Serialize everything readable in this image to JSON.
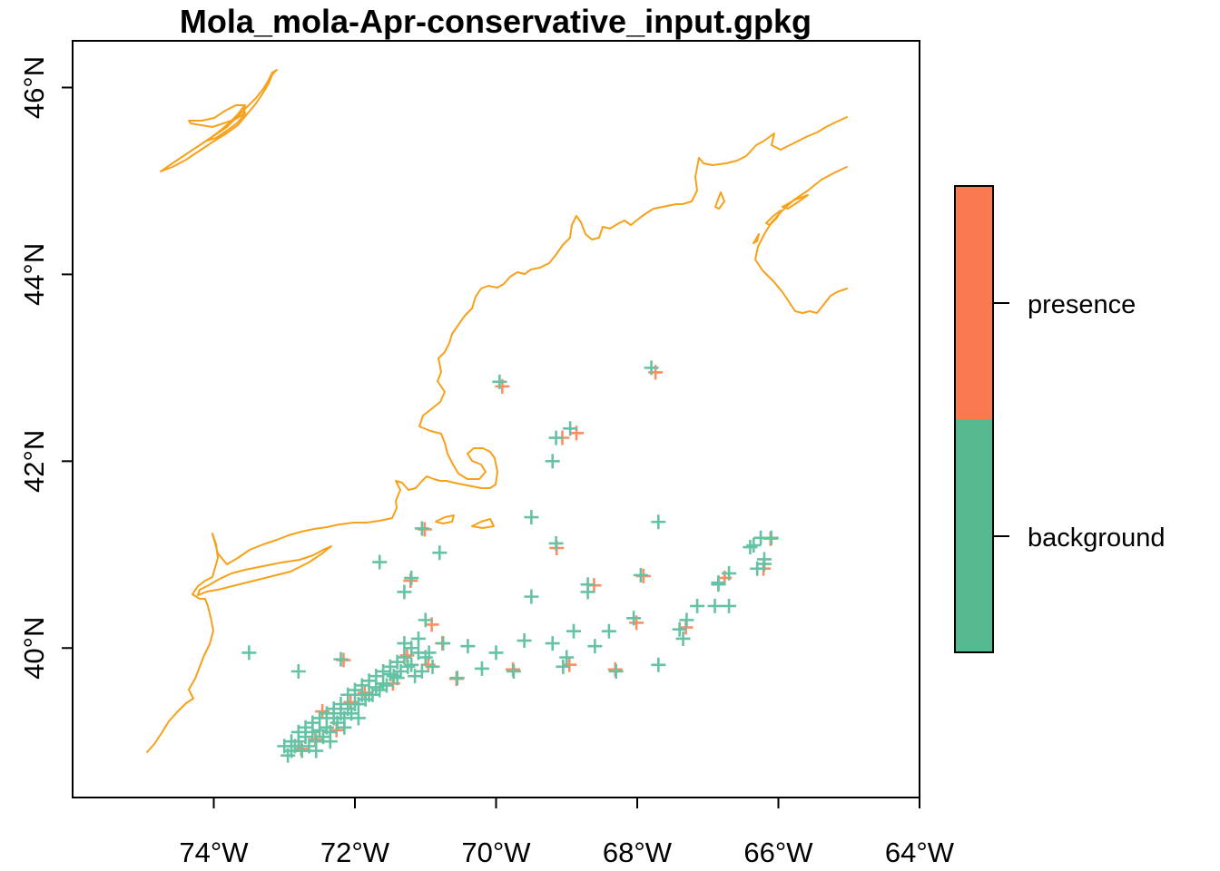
{
  "chart_data": {
    "type": "scatter",
    "title": "Mola_mola-Apr-conservative_input.gpkg",
    "xlabel": "",
    "ylabel": "",
    "xlim": [
      -76.0,
      -64.0
    ],
    "ylim": [
      38.4,
      46.5
    ],
    "x_ticks": [
      -74,
      -72,
      -70,
      -68,
      -66,
      -64
    ],
    "x_tick_labels": [
      "74°W",
      "72°W",
      "70°W",
      "68°W",
      "66°W",
      "64°W"
    ],
    "y_ticks": [
      40,
      42,
      44,
      46
    ],
    "y_tick_labels": [
      "40°N",
      "42°N",
      "44°N",
      "46°N"
    ],
    "colors": {
      "presence": "#FC8D62",
      "background": "#66C2A5",
      "coastline": "#F7A11A",
      "legend_background": "#56B990",
      "legend_presence": "#FA7A4F"
    },
    "legend": {
      "placement": "right",
      "labels": [
        "presence",
        "background"
      ]
    },
    "series": [
      {
        "name": "background",
        "points": [
          [
            -73.5,
            39.95
          ],
          [
            -72.8,
            39.75
          ],
          [
            -72.2,
            39.88
          ],
          [
            -71.0,
            40.3
          ],
          [
            -70.75,
            40.05
          ],
          [
            -70.4,
            40.02
          ],
          [
            -69.6,
            40.08
          ],
          [
            -69.2,
            40.05
          ],
          [
            -69.0,
            39.9
          ],
          [
            -68.9,
            40.18
          ],
          [
            -68.6,
            40.02
          ],
          [
            -68.4,
            40.18
          ],
          [
            -68.3,
            39.75
          ],
          [
            -67.7,
            39.82
          ],
          [
            -67.4,
            40.2
          ],
          [
            -67.15,
            40.45
          ],
          [
            -66.9,
            40.45
          ],
          [
            -66.7,
            40.45
          ],
          [
            -66.85,
            40.7
          ],
          [
            -66.7,
            40.8
          ],
          [
            -66.4,
            41.08
          ],
          [
            -66.25,
            41.18
          ],
          [
            -66.1,
            41.18
          ],
          [
            -66.2,
            40.9
          ],
          [
            -71.65,
            40.92
          ],
          [
            -71.2,
            40.75
          ],
          [
            -71.3,
            40.6
          ],
          [
            -71.05,
            41.28
          ],
          [
            -70.8,
            41.02
          ],
          [
            -69.95,
            42.85
          ],
          [
            -67.8,
            43.0
          ],
          [
            -69.15,
            42.25
          ],
          [
            -68.95,
            42.35
          ],
          [
            -69.2,
            42.0
          ],
          [
            -69.5,
            41.4
          ],
          [
            -69.15,
            41.12
          ],
          [
            -67.7,
            41.35
          ],
          [
            -69.5,
            40.55
          ],
          [
            -68.7,
            40.68
          ],
          [
            -68.7,
            40.6
          ],
          [
            -67.95,
            40.78
          ],
          [
            -68.05,
            40.32
          ],
          [
            -70.0,
            39.95
          ],
          [
            -70.2,
            39.78
          ],
          [
            -69.75,
            39.75
          ],
          [
            -70.55,
            39.68
          ],
          [
            -69.05,
            39.8
          ],
          [
            -72.9,
            39.0
          ],
          [
            -72.8,
            39.1
          ],
          [
            -72.7,
            39.15
          ],
          [
            -72.6,
            39.2
          ],
          [
            -72.5,
            39.25
          ],
          [
            -72.4,
            39.3
          ],
          [
            -72.3,
            39.35
          ],
          [
            -72.2,
            39.4
          ],
          [
            -72.1,
            39.5
          ],
          [
            -72.0,
            39.55
          ],
          [
            -71.9,
            39.6
          ],
          [
            -71.8,
            39.65
          ],
          [
            -71.7,
            39.7
          ],
          [
            -71.6,
            39.75
          ],
          [
            -71.5,
            39.8
          ],
          [
            -71.4,
            39.85
          ],
          [
            -71.3,
            39.9
          ],
          [
            -71.2,
            40.0
          ],
          [
            -71.1,
            39.95
          ],
          [
            -71.0,
            39.9
          ],
          [
            -70.9,
            39.8
          ],
          [
            -72.85,
            38.95
          ],
          [
            -72.75,
            38.9
          ],
          [
            -72.65,
            38.95
          ],
          [
            -72.55,
            39.0
          ],
          [
            -72.45,
            39.05
          ],
          [
            -72.35,
            39.1
          ],
          [
            -72.25,
            39.2
          ],
          [
            -72.15,
            39.25
          ],
          [
            -72.05,
            39.3
          ],
          [
            -71.95,
            39.4
          ],
          [
            -71.85,
            39.45
          ],
          [
            -71.75,
            39.5
          ],
          [
            -71.65,
            39.55
          ],
          [
            -71.55,
            39.6
          ],
          [
            -71.45,
            39.7
          ],
          [
            -71.35,
            39.75
          ],
          [
            -71.25,
            39.8
          ],
          [
            -71.15,
            39.7
          ],
          [
            -71.05,
            39.75
          ],
          [
            -72.95,
            38.85
          ],
          [
            -72.8,
            39.0
          ],
          [
            -72.6,
            39.1
          ],
          [
            -72.4,
            39.15
          ],
          [
            -72.2,
            39.3
          ],
          [
            -72.0,
            39.4
          ],
          [
            -71.8,
            39.5
          ],
          [
            -71.6,
            39.62
          ],
          [
            -71.4,
            39.68
          ],
          [
            -71.2,
            39.82
          ],
          [
            -70.95,
            39.95
          ],
          [
            -72.7,
            39.05
          ],
          [
            -72.5,
            39.12
          ],
          [
            -72.3,
            39.25
          ],
          [
            -72.1,
            39.35
          ],
          [
            -71.9,
            39.5
          ],
          [
            -71.7,
            39.58
          ],
          [
            -71.5,
            39.72
          ],
          [
            -71.3,
            40.05
          ],
          [
            -71.1,
            40.1
          ],
          [
            -72.55,
            38.9
          ],
          [
            -72.35,
            39.0
          ],
          [
            -72.15,
            39.15
          ],
          [
            -71.95,
            39.25
          ],
          [
            -73.0,
            38.95
          ],
          [
            -72.9,
            38.9
          ],
          [
            -66.3,
            40.85
          ],
          [
            -66.2,
            40.95
          ],
          [
            -66.35,
            41.1
          ],
          [
            -66.85,
            40.68
          ],
          [
            -67.3,
            40.3
          ],
          [
            -67.35,
            40.1
          ]
        ]
      },
      {
        "name": "presence",
        "points": [
          [
            -72.2,
            39.9
          ],
          [
            -70.95,
            40.28
          ],
          [
            -70.8,
            40.08
          ],
          [
            -69.95,
            42.83
          ],
          [
            -67.78,
            42.98
          ],
          [
            -69.1,
            42.28
          ],
          [
            -68.9,
            42.33
          ],
          [
            -69.18,
            41.1
          ],
          [
            -67.95,
            40.8
          ],
          [
            -68.05,
            40.3
          ],
          [
            -68.65,
            40.7
          ],
          [
            -66.8,
            40.78
          ],
          [
            -66.15,
            41.2
          ],
          [
            -67.35,
            40.25
          ],
          [
            -71.25,
            40.75
          ],
          [
            -71.05,
            41.3
          ],
          [
            -72.5,
            39.35
          ],
          [
            -72.3,
            39.15
          ],
          [
            -72.1,
            39.45
          ],
          [
            -71.9,
            39.55
          ],
          [
            -71.5,
            39.65
          ],
          [
            -71.3,
            39.95
          ],
          [
            -71.0,
            39.85
          ],
          [
            -72.8,
            38.95
          ],
          [
            -72.6,
            39.05
          ],
          [
            -70.6,
            39.7
          ],
          [
            -69.8,
            39.8
          ],
          [
            -69.0,
            39.85
          ],
          [
            -68.35,
            39.8
          ],
          [
            -66.25,
            40.88
          ]
        ]
      }
    ]
  }
}
